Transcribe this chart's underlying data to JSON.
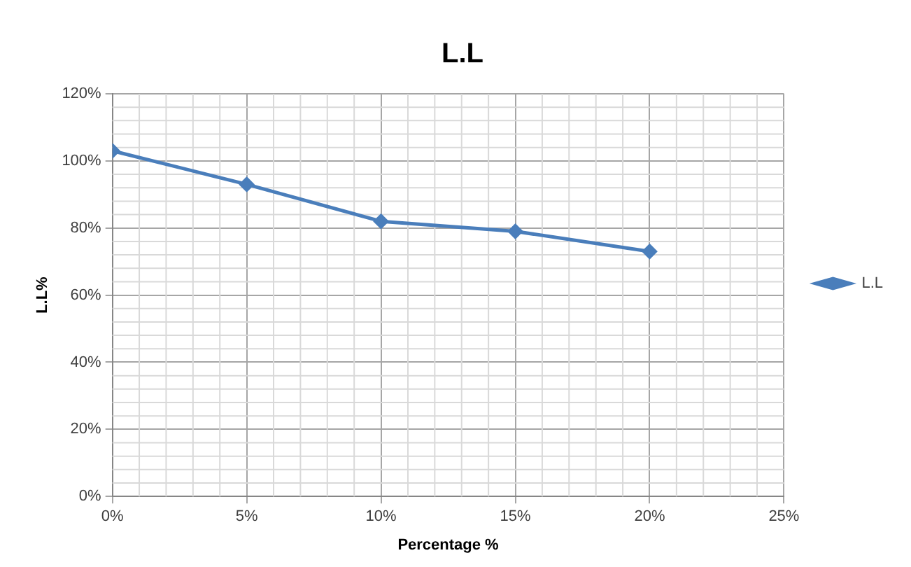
{
  "chart_data": {
    "type": "line",
    "title": "L.L",
    "xlabel": "Percentage %",
    "ylabel": "L.L%",
    "x": [
      0,
      5,
      10,
      15,
      20
    ],
    "series": [
      {
        "name": "L.L",
        "color": "#4a7ebb",
        "values": [
          103,
          93,
          82,
          79,
          73
        ]
      }
    ],
    "xlim": [
      0,
      25
    ],
    "xticks": [
      {
        "value": 0,
        "label": "0%"
      },
      {
        "value": 5,
        "label": "5%"
      },
      {
        "value": 10,
        "label": "10%"
      },
      {
        "value": 15,
        "label": "15%"
      },
      {
        "value": 20,
        "label": "20%"
      },
      {
        "value": 25,
        "label": "25%"
      }
    ],
    "ylim": [
      0,
      120
    ],
    "yticks": [
      {
        "value": 0,
        "label": "0%"
      },
      {
        "value": 20,
        "label": "20%"
      },
      {
        "value": 40,
        "label": "40%"
      },
      {
        "value": 60,
        "label": "60%"
      },
      {
        "value": 80,
        "label": "80%"
      },
      {
        "value": 100,
        "label": "100%"
      },
      {
        "value": 120,
        "label": "120%"
      }
    ],
    "grid": true,
    "legend": "right",
    "marker": "diamond",
    "line_style": "solid"
  }
}
